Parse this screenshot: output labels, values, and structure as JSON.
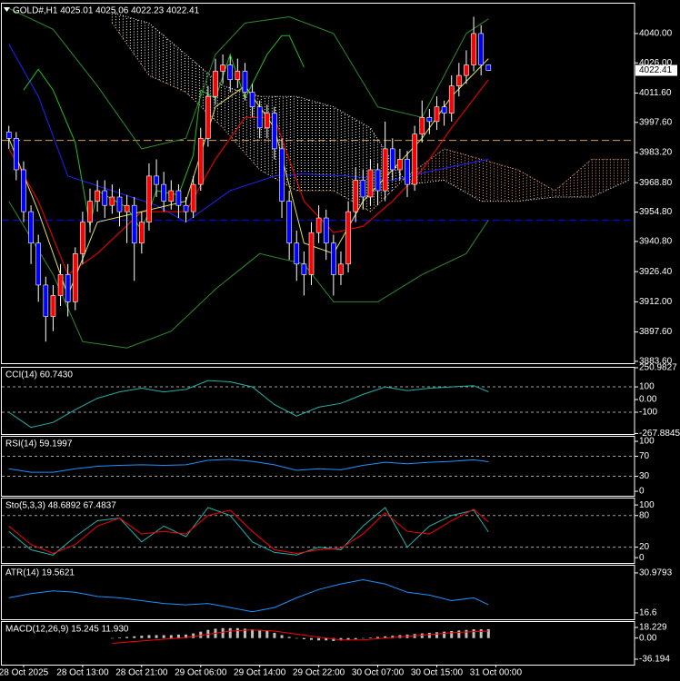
{
  "chart_data": [
    {
      "type": "candlestick",
      "title": "GOLD#,H1  4025.01 4025.06 4022.23 4022.41",
      "xlim": [
        -1.2,
        84.8
      ],
      "ylim": [
        3882.7,
        4054.7
      ],
      "yticks": [
        {
          "value": 4040,
          "label": "4040.00"
        },
        {
          "value": 4026,
          "label": "4026.00"
        },
        {
          "value": 4011.6,
          "label": "4011.60"
        },
        {
          "value": 3997.6,
          "label": "3997.60"
        },
        {
          "value": 3983.2,
          "label": "3983.20"
        },
        {
          "value": 3968.8,
          "label": "3968.80"
        },
        {
          "value": 3954.8,
          "label": "3954.80"
        },
        {
          "value": 3940.8,
          "label": "3940.80"
        },
        {
          "value": 3926.4,
          "label": "3926.40"
        },
        {
          "value": 3912,
          "label": "3912.00"
        },
        {
          "value": 3897.6,
          "label": "3897.60"
        },
        {
          "value": 3883.6,
          "label": "3883.60"
        }
      ],
      "up_color": "#ff0000",
      "down_color": "#0000ff",
      "wick_color": "#ffffff",
      "open": [
        3993,
        3990,
        3975,
        3955,
        3940,
        3920,
        3905,
        3915,
        3925,
        3912,
        3935,
        3950,
        3960,
        3965,
        3958,
        3962,
        3955,
        3958,
        3940,
        3950,
        3972,
        3968,
        3960,
        3965,
        3958,
        3955,
        3968,
        3990,
        4010,
        4022,
        4025,
        4018,
        4022,
        4012,
        4005,
        3995,
        4002,
        3985,
        3960,
        3940,
        3930,
        3925,
        3945,
        3952,
        3940,
        3925,
        3930,
        3955,
        3970,
        3962,
        3975,
        3965,
        3985,
        3975,
        3980,
        3968,
        3992,
        4000,
        3998,
        4005,
        4002,
        4015,
        4020,
        4025,
        4040,
        4025.01
      ],
      "high": [
        3996,
        3993,
        3979,
        3958,
        3944,
        3924,
        3920,
        3930,
        3930,
        3938,
        3955,
        3966,
        3970,
        3970,
        3968,
        3966,
        3963,
        3962,
        3955,
        3978,
        3980,
        3974,
        3970,
        3968,
        3962,
        3972,
        3995,
        4015,
        4028,
        4030,
        4029,
        4028,
        4026,
        4016,
        4008,
        4006,
        4005,
        3990,
        3965,
        3946,
        3936,
        3950,
        3958,
        3956,
        3944,
        3936,
        3960,
        3976,
        3975,
        3980,
        3978,
        3998,
        3990,
        3985,
        3984,
        3996,
        4008,
        4004,
        4010,
        4008,
        4020,
        4026,
        4032,
        4048,
        4044,
        4025.06
      ],
      "low": [
        3985,
        3970,
        3950,
        3930,
        3912,
        3893,
        3898,
        3910,
        3905,
        3908,
        3930,
        3945,
        3955,
        3952,
        3954,
        3948,
        3940,
        3922,
        3935,
        3946,
        3962,
        3955,
        3956,
        3952,
        3950,
        3952,
        3965,
        3986,
        4006,
        4016,
        4012,
        4014,
        4008,
        4000,
        3990,
        3990,
        3980,
        3952,
        3932,
        3922,
        3915,
        3920,
        3940,
        3932,
        3915,
        3920,
        3926,
        3950,
        3956,
        3958,
        3958,
        3960,
        3970,
        3970,
        3962,
        3965,
        3988,
        3992,
        3994,
        3996,
        3998,
        4010,
        4016,
        4022,
        4020,
        4022.23
      ],
      "close": [
        3990,
        3975,
        3955,
        3940,
        3920,
        3905,
        3915,
        3925,
        3912,
        3935,
        3950,
        3960,
        3965,
        3958,
        3962,
        3955,
        3958,
        3940,
        3950,
        3972,
        3968,
        3960,
        3965,
        3958,
        3955,
        3968,
        3990,
        4010,
        4022,
        4025,
        4018,
        4022,
        4012,
        4005,
        3995,
        4002,
        3985,
        3960,
        3940,
        3930,
        3925,
        3945,
        3952,
        3940,
        3925,
        3930,
        3955,
        3970,
        3962,
        3975,
        3965,
        3985,
        3975,
        3980,
        3968,
        3992,
        4000,
        3998,
        4005,
        4002,
        4015,
        4020,
        4025,
        4040,
        4025.01,
        4022.41
      ],
      "last_price": 4022.41,
      "levels": [
        {
          "value": 3989,
          "color": "#d8a050"
        },
        {
          "value": 3951,
          "color": "#0000ff"
        }
      ],
      "cloud": {
        "x": [
          14,
          19,
          24,
          29,
          34,
          39,
          44,
          49,
          54,
          59,
          64,
          69,
          74,
          79,
          84
        ],
        "span_a": [
          4045,
          4020,
          4012,
          3995,
          3975,
          3965,
          3965,
          3955,
          3972,
          3985,
          3980,
          3975,
          3965,
          3980,
          3980
        ],
        "span_b": [
          4050,
          4045,
          4030,
          4015,
          4010,
          4010,
          4005,
          3995,
          3968,
          3970,
          3960,
          3960,
          3962,
          3962,
          3970
        ],
        "color_up": "#e8a070",
        "color_down": "#ffffff"
      },
      "series": [
        {
          "color": "#2e8b2e",
          "x": [
            0,
            6,
            12,
            18,
            24,
            28,
            32,
            38,
            44,
            50,
            56,
            62,
            65
          ],
          "values": [
            4052,
            4042,
            4015,
            3985,
            3990,
            4030,
            4045,
            4048,
            4040,
            4005,
            4000,
            4040,
            4047
          ]
        },
        {
          "color": "#2e8b2e",
          "x": [
            0,
            6,
            10,
            16,
            22,
            28,
            34,
            40,
            44,
            50,
            56,
            62,
            65
          ],
          "values": [
            3960,
            3925,
            3893,
            3890,
            3898,
            3918,
            3935,
            3930,
            3912,
            3912,
            3925,
            3935,
            3951
          ]
        },
        {
          "color": "#2020ff",
          "x": [
            0,
            4,
            8,
            14,
            20,
            24,
            30,
            36,
            40,
            46,
            52,
            58,
            65
          ],
          "values": [
            4035,
            4010,
            3972,
            3965,
            3958,
            3950,
            3965,
            3972,
            3973,
            3972,
            3970,
            3975,
            3980
          ]
        },
        {
          "color": "#ff0000",
          "x": [
            0,
            4,
            8,
            12,
            18,
            24,
            28,
            32,
            36,
            40,
            44,
            48,
            52,
            56,
            60,
            65
          ],
          "values": [
            3985,
            3960,
            3925,
            3935,
            3955,
            3955,
            3980,
            4000,
            4000,
            3960,
            3945,
            3948,
            3960,
            3975,
            3995,
            4018
          ]
        },
        {
          "color": "#e0e060",
          "x": [
            0,
            4,
            8,
            12,
            18,
            24,
            28,
            32,
            36,
            40,
            44,
            48,
            52,
            56,
            60,
            65
          ],
          "values": [
            3990,
            3955,
            3915,
            3950,
            3955,
            3960,
            4005,
            4015,
            3995,
            3940,
            3935,
            3960,
            3975,
            3990,
            4010,
            4028
          ]
        },
        {
          "color": "#20c020",
          "x": [
            2,
            4,
            6,
            9,
            11,
            12,
            16,
            18,
            20,
            23,
            25,
            26,
            28,
            30,
            32,
            35,
            37,
            38,
            40
          ],
          "values": [
            4013,
            4023,
            4013,
            3988,
            3948,
            3965,
            3957,
            3946,
            3965,
            3963,
            3982,
            4013,
            4009,
            4030,
            4009,
            4030,
            4039,
            4039,
            4024
          ]
        }
      ]
    },
    {
      "type": "line",
      "title": "CCI(14) 60.7430",
      "ylim": [
        -272,
        258
      ],
      "yticks": [
        250.9827,
        100,
        {
          "value": 0,
          "label": "0.00"
        },
        -100,
        -267.8845
      ],
      "levels": [
        100,
        -100
      ],
      "series": [
        {
          "color": "#20b2aa",
          "x": [
            0,
            3,
            6,
            9,
            12,
            15,
            18,
            21,
            24,
            27,
            30,
            33,
            36,
            39,
            42,
            45,
            48,
            51,
            54,
            57,
            60,
            63,
            65
          ],
          "values": [
            -100,
            -220,
            -180,
            -80,
            10,
            60,
            90,
            60,
            80,
            150,
            140,
            100,
            -40,
            -130,
            -60,
            -30,
            40,
            100,
            70,
            90,
            100,
            110,
            60.743
          ]
        }
      ]
    },
    {
      "type": "line",
      "title": "RSI(14) 59.1997",
      "ylim": [
        -9,
        111
      ],
      "yticks": [
        100,
        70,
        30,
        0
      ],
      "levels": [
        70,
        30
      ],
      "series": [
        {
          "color": "#1e90ff",
          "x": [
            0,
            3,
            6,
            9,
            12,
            15,
            18,
            21,
            24,
            27,
            30,
            33,
            36,
            39,
            42,
            45,
            48,
            51,
            54,
            57,
            60,
            63,
            65
          ],
          "values": [
            45,
            38,
            38,
            45,
            50,
            52,
            53,
            52,
            53,
            62,
            64,
            60,
            53,
            42,
            45,
            43,
            52,
            58,
            55,
            58,
            60,
            63,
            59.1997
          ]
        }
      ]
    },
    {
      "type": "line",
      "title": "Sto(5,3,3) 48.6892 67.4837",
      "ylim": [
        -10,
        114
      ],
      "yticks": [
        100,
        80,
        20,
        0
      ],
      "levels": [
        80,
        20
      ],
      "series": [
        {
          "color": "#20b2aa",
          "x": [
            0,
            3,
            6,
            9,
            12,
            15,
            18,
            21,
            24,
            27,
            30,
            33,
            36,
            39,
            42,
            45,
            48,
            51,
            54,
            57,
            60,
            63,
            65
          ],
          "values": [
            50,
            15,
            5,
            40,
            70,
            75,
            30,
            60,
            40,
            95,
            80,
            30,
            10,
            5,
            20,
            15,
            60,
            95,
            20,
            60,
            80,
            90,
            48.6892
          ]
        },
        {
          "color": "#ff0000",
          "x": [
            0,
            3,
            6,
            9,
            12,
            15,
            18,
            21,
            24,
            27,
            30,
            33,
            36,
            39,
            42,
            45,
            48,
            51,
            54,
            57,
            60,
            63,
            65
          ],
          "values": [
            60,
            25,
            8,
            25,
            60,
            75,
            45,
            50,
            45,
            80,
            90,
            50,
            15,
            8,
            15,
            18,
            45,
            85,
            50,
            45,
            70,
            92,
            67.4837
          ]
        }
      ]
    },
    {
      "type": "line",
      "title": "ATR(14) 19.5621",
      "ylim": [
        14.3,
        33.9
      ],
      "yticks": [
        30.9793,
        16.6
      ],
      "series": [
        {
          "color": "#1e90ff",
          "x": [
            0,
            3,
            6,
            9,
            12,
            15,
            18,
            21,
            24,
            27,
            30,
            33,
            36,
            39,
            42,
            45,
            48,
            51,
            54,
            57,
            60,
            63,
            65
          ],
          "values": [
            22,
            23.5,
            24.5,
            24,
            22.5,
            22,
            21,
            20,
            19.5,
            20,
            18.5,
            17,
            18.5,
            22,
            25,
            27,
            28.5,
            27,
            24,
            23,
            21,
            22,
            19.5621
          ]
        }
      ]
    },
    {
      "type": "bar",
      "title": "MACD(12,26,9) 15.245 11.930",
      "ylim": [
        -45.5,
        29.1
      ],
      "yticks": [
        18.229,
        {
          "value": 0,
          "label": "0.00"
        },
        -36.194
      ],
      "color": "#c0c0c0",
      "values": [
        null,
        null,
        null,
        null,
        null,
        null,
        null,
        null,
        null,
        null,
        null,
        null,
        null,
        null,
        0,
        1,
        2,
        3,
        4,
        5,
        5,
        5,
        5,
        6,
        6,
        8,
        11,
        14,
        16,
        17,
        17,
        17,
        16,
        15,
        14,
        12,
        9,
        5,
        2,
        0,
        -2,
        -3,
        -4,
        -4,
        -5,
        -4,
        -3,
        -2,
        0,
        1,
        2,
        3,
        4,
        5,
        6,
        7,
        8,
        9,
        10,
        11,
        12,
        13,
        14,
        15,
        15,
        15.245
      ],
      "series": [
        {
          "color": "#ff0000",
          "x": [
            14,
            18,
            24,
            30,
            33,
            36,
            40,
            45,
            48,
            51,
            54,
            57,
            60,
            63,
            65
          ],
          "values": [
            -9,
            -5,
            1,
            12,
            14,
            12,
            5,
            -3,
            -3,
            0,
            3,
            6,
            9,
            11,
            11.93
          ]
        }
      ],
      "xticks": [
        {
          "value": 2,
          "label": "28 Oct 2025"
        },
        {
          "value": 10,
          "label": "28 Oct 13:00"
        },
        {
          "value": 18,
          "label": "28 Oct 21:00"
        },
        {
          "value": 26,
          "label": "29 Oct 06:00"
        },
        {
          "value": 34,
          "label": "29 Oct 14:00"
        },
        {
          "value": 42,
          "label": "29 Oct 22:00"
        },
        {
          "value": 50,
          "label": "30 Oct 07:00"
        },
        {
          "value": 58,
          "label": "30 Oct 15:00"
        },
        {
          "value": 66,
          "label": "31 Oct 00:00"
        }
      ]
    }
  ]
}
